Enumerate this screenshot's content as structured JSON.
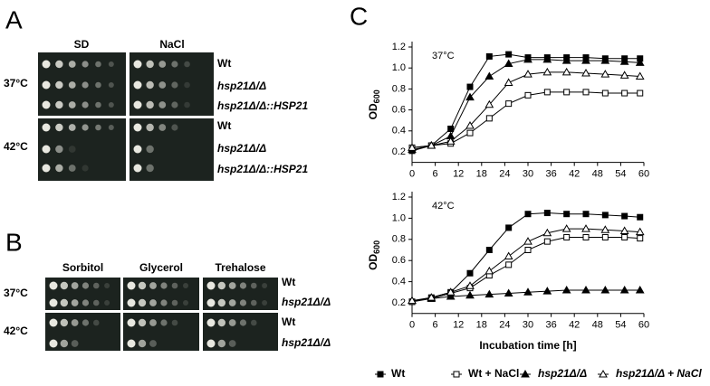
{
  "panel_a": {
    "label": "A",
    "columns": [
      "SD",
      "NaCl"
    ],
    "temperatures": [
      "37°C",
      "42°C"
    ],
    "strains": [
      "Wt",
      "hsp21Δ/Δ",
      "hsp21Δ/Δ::HSP21",
      "Wt",
      "hsp21Δ/Δ",
      "hsp21Δ/Δ::HSP21"
    ]
  },
  "panel_b": {
    "label": "B",
    "columns": [
      "Sorbitol",
      "Glycerol",
      "Trehalose"
    ],
    "temperatures": [
      "37°C",
      "42°C"
    ],
    "strains": [
      "Wt",
      "hsp21Δ/Δ",
      "Wt",
      "hsp21Δ/Δ"
    ]
  },
  "panel_c": {
    "label": "C"
  },
  "chart_data": [
    {
      "type": "line",
      "annotation": "37°C",
      "ylabel": "OD",
      "ylabel_sub": "600",
      "x": [
        0,
        5,
        10,
        15,
        20,
        25,
        30,
        35,
        40,
        45,
        50,
        55,
        59
      ],
      "xlim": [
        0,
        60
      ],
      "xticks": [
        0,
        6,
        12,
        18,
        24,
        30,
        36,
        42,
        48,
        54,
        60
      ],
      "ylim": [
        0.1,
        1.2
      ],
      "yticks": [
        0.2,
        0.4,
        0.6,
        0.8,
        {
          "value": 1,
          "label": "1.0"
        },
        1.2
      ],
      "series": [
        {
          "name": "Wt",
          "color": "#000000",
          "marker": "square",
          "filled": true,
          "values": [
            0.21,
            0.26,
            0.42,
            0.82,
            1.11,
            1.13,
            1.1,
            1.1,
            1.1,
            1.1,
            1.09,
            1.09,
            1.09
          ]
        },
        {
          "name": "Wt + NaCl",
          "color": "#000000",
          "marker": "square",
          "filled": false,
          "values": [
            0.24,
            0.26,
            0.28,
            0.38,
            0.52,
            0.66,
            0.74,
            0.77,
            0.77,
            0.77,
            0.76,
            0.76,
            0.76
          ]
        },
        {
          "name": "hsp21Δ/Δ",
          "color": "#000000",
          "marker": "triangle",
          "filled": true,
          "values": [
            0.22,
            0.26,
            0.35,
            0.72,
            0.92,
            1.04,
            1.08,
            1.08,
            1.07,
            1.07,
            1.07,
            1.06,
            1.05
          ]
        },
        {
          "name": "hsp21Δ/Δ + NaCl",
          "color": "#000000",
          "marker": "triangle",
          "filled": false,
          "values": [
            0.24,
            0.26,
            0.3,
            0.45,
            0.65,
            0.86,
            0.94,
            0.96,
            0.96,
            0.95,
            0.94,
            0.93,
            0.92
          ]
        }
      ]
    },
    {
      "type": "line",
      "annotation": "42°C",
      "ylabel": "OD",
      "ylabel_sub": "600",
      "xlabel": "Incubation time [h]",
      "x": [
        0,
        5,
        10,
        15,
        20,
        25,
        30,
        35,
        40,
        45,
        50,
        55,
        59
      ],
      "xlim": [
        0,
        60
      ],
      "xticks": [
        0,
        6,
        12,
        18,
        24,
        30,
        36,
        42,
        48,
        54,
        60
      ],
      "ylim": [
        0.1,
        1.2
      ],
      "yticks": [
        0.2,
        0.4,
        0.6,
        0.8,
        {
          "value": 1,
          "label": "1.0"
        },
        1.2
      ],
      "series": [
        {
          "color": "#000000",
          "marker": "square",
          "filled": true,
          "values": [
            0.21,
            0.25,
            0.3,
            0.48,
            0.7,
            0.91,
            1.04,
            1.05,
            1.04,
            1.04,
            1.03,
            1.02,
            1.01
          ]
        },
        {
          "color": "#000000",
          "marker": "square",
          "filled": false,
          "values": [
            0.21,
            0.24,
            0.29,
            0.34,
            0.46,
            0.56,
            0.7,
            0.78,
            0.82,
            0.82,
            0.82,
            0.82,
            0.81
          ]
        },
        {
          "color": "#000000",
          "marker": "triangle",
          "filled": true,
          "values": [
            0.22,
            0.24,
            0.26,
            0.27,
            0.28,
            0.29,
            0.3,
            0.31,
            0.32,
            0.32,
            0.32,
            0.32,
            0.32
          ]
        },
        {
          "color": "#000000",
          "marker": "triangle",
          "filled": false,
          "values": [
            0.22,
            0.25,
            0.3,
            0.36,
            0.5,
            0.64,
            0.78,
            0.86,
            0.9,
            0.9,
            0.89,
            0.88,
            0.87
          ]
        }
      ]
    }
  ]
}
